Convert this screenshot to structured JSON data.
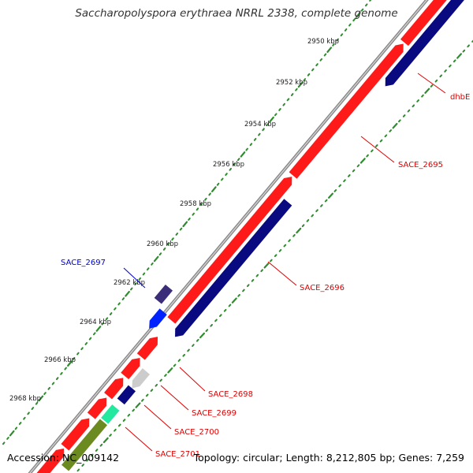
{
  "title": "Saccharopolyspora erythraea NRRL 2338, complete genome",
  "footer": {
    "accession": "Accession: NC_009142",
    "summary": "Topology: circular; Length: 8,212,805 bp; Genes: 7,259"
  },
  "colors": {
    "forward_cds": "#ff1a1a",
    "reverse_cds": "#0a0a80",
    "blue_gene": "#0022ff",
    "purple_gene": "#3b2d7a",
    "grey_gene": "#cccccc",
    "teal_gene": "#22e8a0",
    "olive_gene": "#6b8a1f",
    "backbone": "#999999",
    "gc_ticks": "#2e8b2e",
    "label_red": "#e00000",
    "label_blue": "#0000cc"
  },
  "scale_ticks": [
    "2950 kbp",
    "2952 kbp",
    "2954 kbp",
    "2956 kbp",
    "2958 kbp",
    "2960 kbp",
    "2962 kbp",
    "2964 kbp",
    "2966 kbp",
    "2968 kbp"
  ],
  "gene_labels": [
    {
      "name": "dhbE",
      "color": "red"
    },
    {
      "name": "SACE_2695",
      "color": "red"
    },
    {
      "name": "SACE_2696",
      "color": "red"
    },
    {
      "name": "SACE_2697",
      "color": "blue"
    },
    {
      "name": "SACE_2698",
      "color": "red"
    },
    {
      "name": "SACE_2699",
      "color": "red"
    },
    {
      "name": "SACE_2700",
      "color": "red"
    },
    {
      "name": "SACE_2701",
      "color": "red"
    }
  ]
}
